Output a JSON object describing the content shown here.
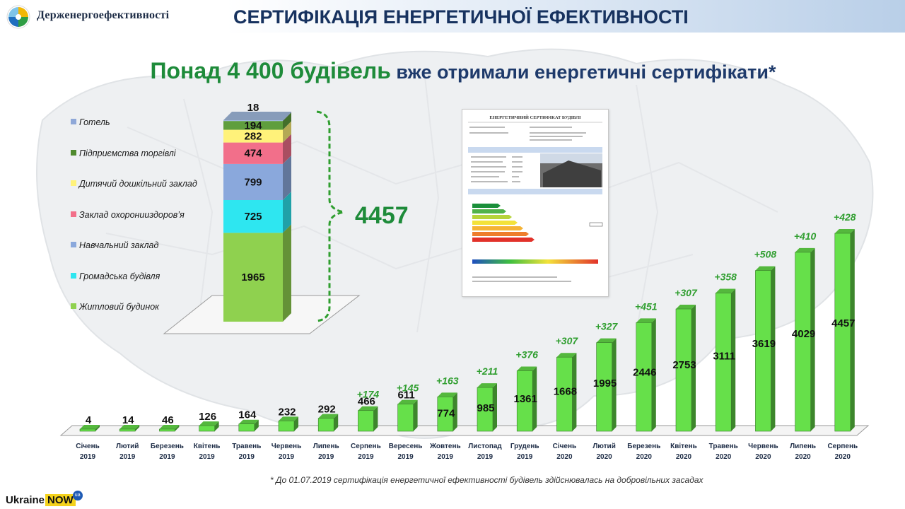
{
  "header": {
    "logo_text": "Держенергоефективності",
    "title": "СЕРТИФІКАЦІЯ ЕНЕРГЕТИЧНОЇ ЕФЕКТИВНОСТІ"
  },
  "headline": {
    "strong": "Понад 4 400 будівель",
    "rest": " вже отримали енергетичні сертифікати*"
  },
  "colors": {
    "bar_green": "#66e04a",
    "increment_green": "#2f9e2f",
    "title_blue": "#17325f"
  },
  "chart_data": [
    {
      "type": "bar",
      "categories": [
        "Січень 2019",
        "Лютий 2019",
        "Березень 2019",
        "Квітень 2019",
        "Травень 2019",
        "Червень 2019",
        "Липень 2019",
        "Серпень 2019",
        "Вересень 2019",
        "Жовтень 2019",
        "Листопад 2019",
        "Грудень 2019",
        "Січень 2020",
        "Лютий 2020",
        "Березень 2020",
        "Квітень 2020",
        "Травень 2020",
        "Червень 2020",
        "Липень 2020",
        "Серпень 2020"
      ],
      "category_lines": [
        [
          "Січень",
          "2019"
        ],
        [
          "Лютий",
          "2019"
        ],
        [
          "Березень",
          "2019"
        ],
        [
          "Квітень",
          "2019"
        ],
        [
          "Травень",
          "2019"
        ],
        [
          "Червень",
          "2019"
        ],
        [
          "Липень",
          "2019"
        ],
        [
          "Серпень",
          "2019"
        ],
        [
          "Вересень",
          "2019"
        ],
        [
          "Жовтень",
          "2019"
        ],
        [
          "Листопад",
          "2019"
        ],
        [
          "Грудень",
          "2019"
        ],
        [
          "Січень",
          "2020"
        ],
        [
          "Лютий",
          "2020"
        ],
        [
          "Березень",
          "2020"
        ],
        [
          "Квітень",
          "2020"
        ],
        [
          "Травень",
          "2020"
        ],
        [
          "Червень",
          "2020"
        ],
        [
          "Липень",
          "2020"
        ],
        [
          "Серпень",
          "2020"
        ]
      ],
      "values": [
        4,
        14,
        46,
        126,
        164,
        232,
        292,
        466,
        611,
        774,
        985,
        1361,
        1668,
        1995,
        2446,
        2753,
        3111,
        3619,
        4029,
        4457
      ],
      "increments": [
        "",
        "",
        "",
        "",
        "",
        "",
        "",
        "+174",
        "+145",
        "+163",
        "+211",
        "+376",
        "+307",
        "+327",
        "+451",
        "+307",
        "+358",
        "+508",
        "+410",
        "+428"
      ],
      "ylim": [
        0,
        4457
      ]
    },
    {
      "type": "bar",
      "stacked": true,
      "total": 4457,
      "total_label": "4457",
      "series": [
        {
          "name": "Житловий будинок",
          "value": 1965,
          "label": "1965",
          "color": "#8fd14f"
        },
        {
          "name": "Громадська будівля",
          "value": 725,
          "label": "725",
          "color": "#2ee6f0"
        },
        {
          "name": "Навчальний заклад",
          "value": 799,
          "label": "799",
          "color": "#8aa8dc"
        },
        {
          "name": "Заклад охоронииздоров’я",
          "value": 474,
          "label": "474",
          "color": "#f26f8a"
        },
        {
          "name": "Дитячий дошкільний заклад",
          "value": 282,
          "label": "282",
          "color": "#fff27a"
        },
        {
          "name": "Підприємства торгівлі",
          "value": 194,
          "label": "194",
          "color": "#5f9e3d"
        },
        {
          "name": "Готель",
          "value": 18,
          "label": "18",
          "color": "#9fb7db"
        }
      ],
      "legend": [
        {
          "label": "Готель",
          "color": "#8fa8d8"
        },
        {
          "label": "Підприємства торгівлі",
          "color": "#4f8a2e"
        },
        {
          "label": "Дитячий дошкільний заклад",
          "color": "#fff27a"
        },
        {
          "label": "Заклад охоронииздоров’я",
          "color": "#f26f8a"
        },
        {
          "label": "Навчальний заклад",
          "color": "#8aa8dc"
        },
        {
          "label": "Громадська будівля",
          "color": "#2ee6f0"
        },
        {
          "label": "Житловий будинок",
          "color": "#8fd14f"
        }
      ],
      "legend_position": "left"
    }
  ],
  "certificate": {
    "title": "ЕНЕРГЕТИЧНИЙ СЕРТИФІКАТ БУДІВЛІ"
  },
  "footnote": "* До 01.07.2019  сертифікація енергетичної ефективності будівель здійснювалась на добровільних засадах",
  "ukraine_now": {
    "text": "Ukraine",
    "now": "NOW",
    "ua": "ua"
  }
}
